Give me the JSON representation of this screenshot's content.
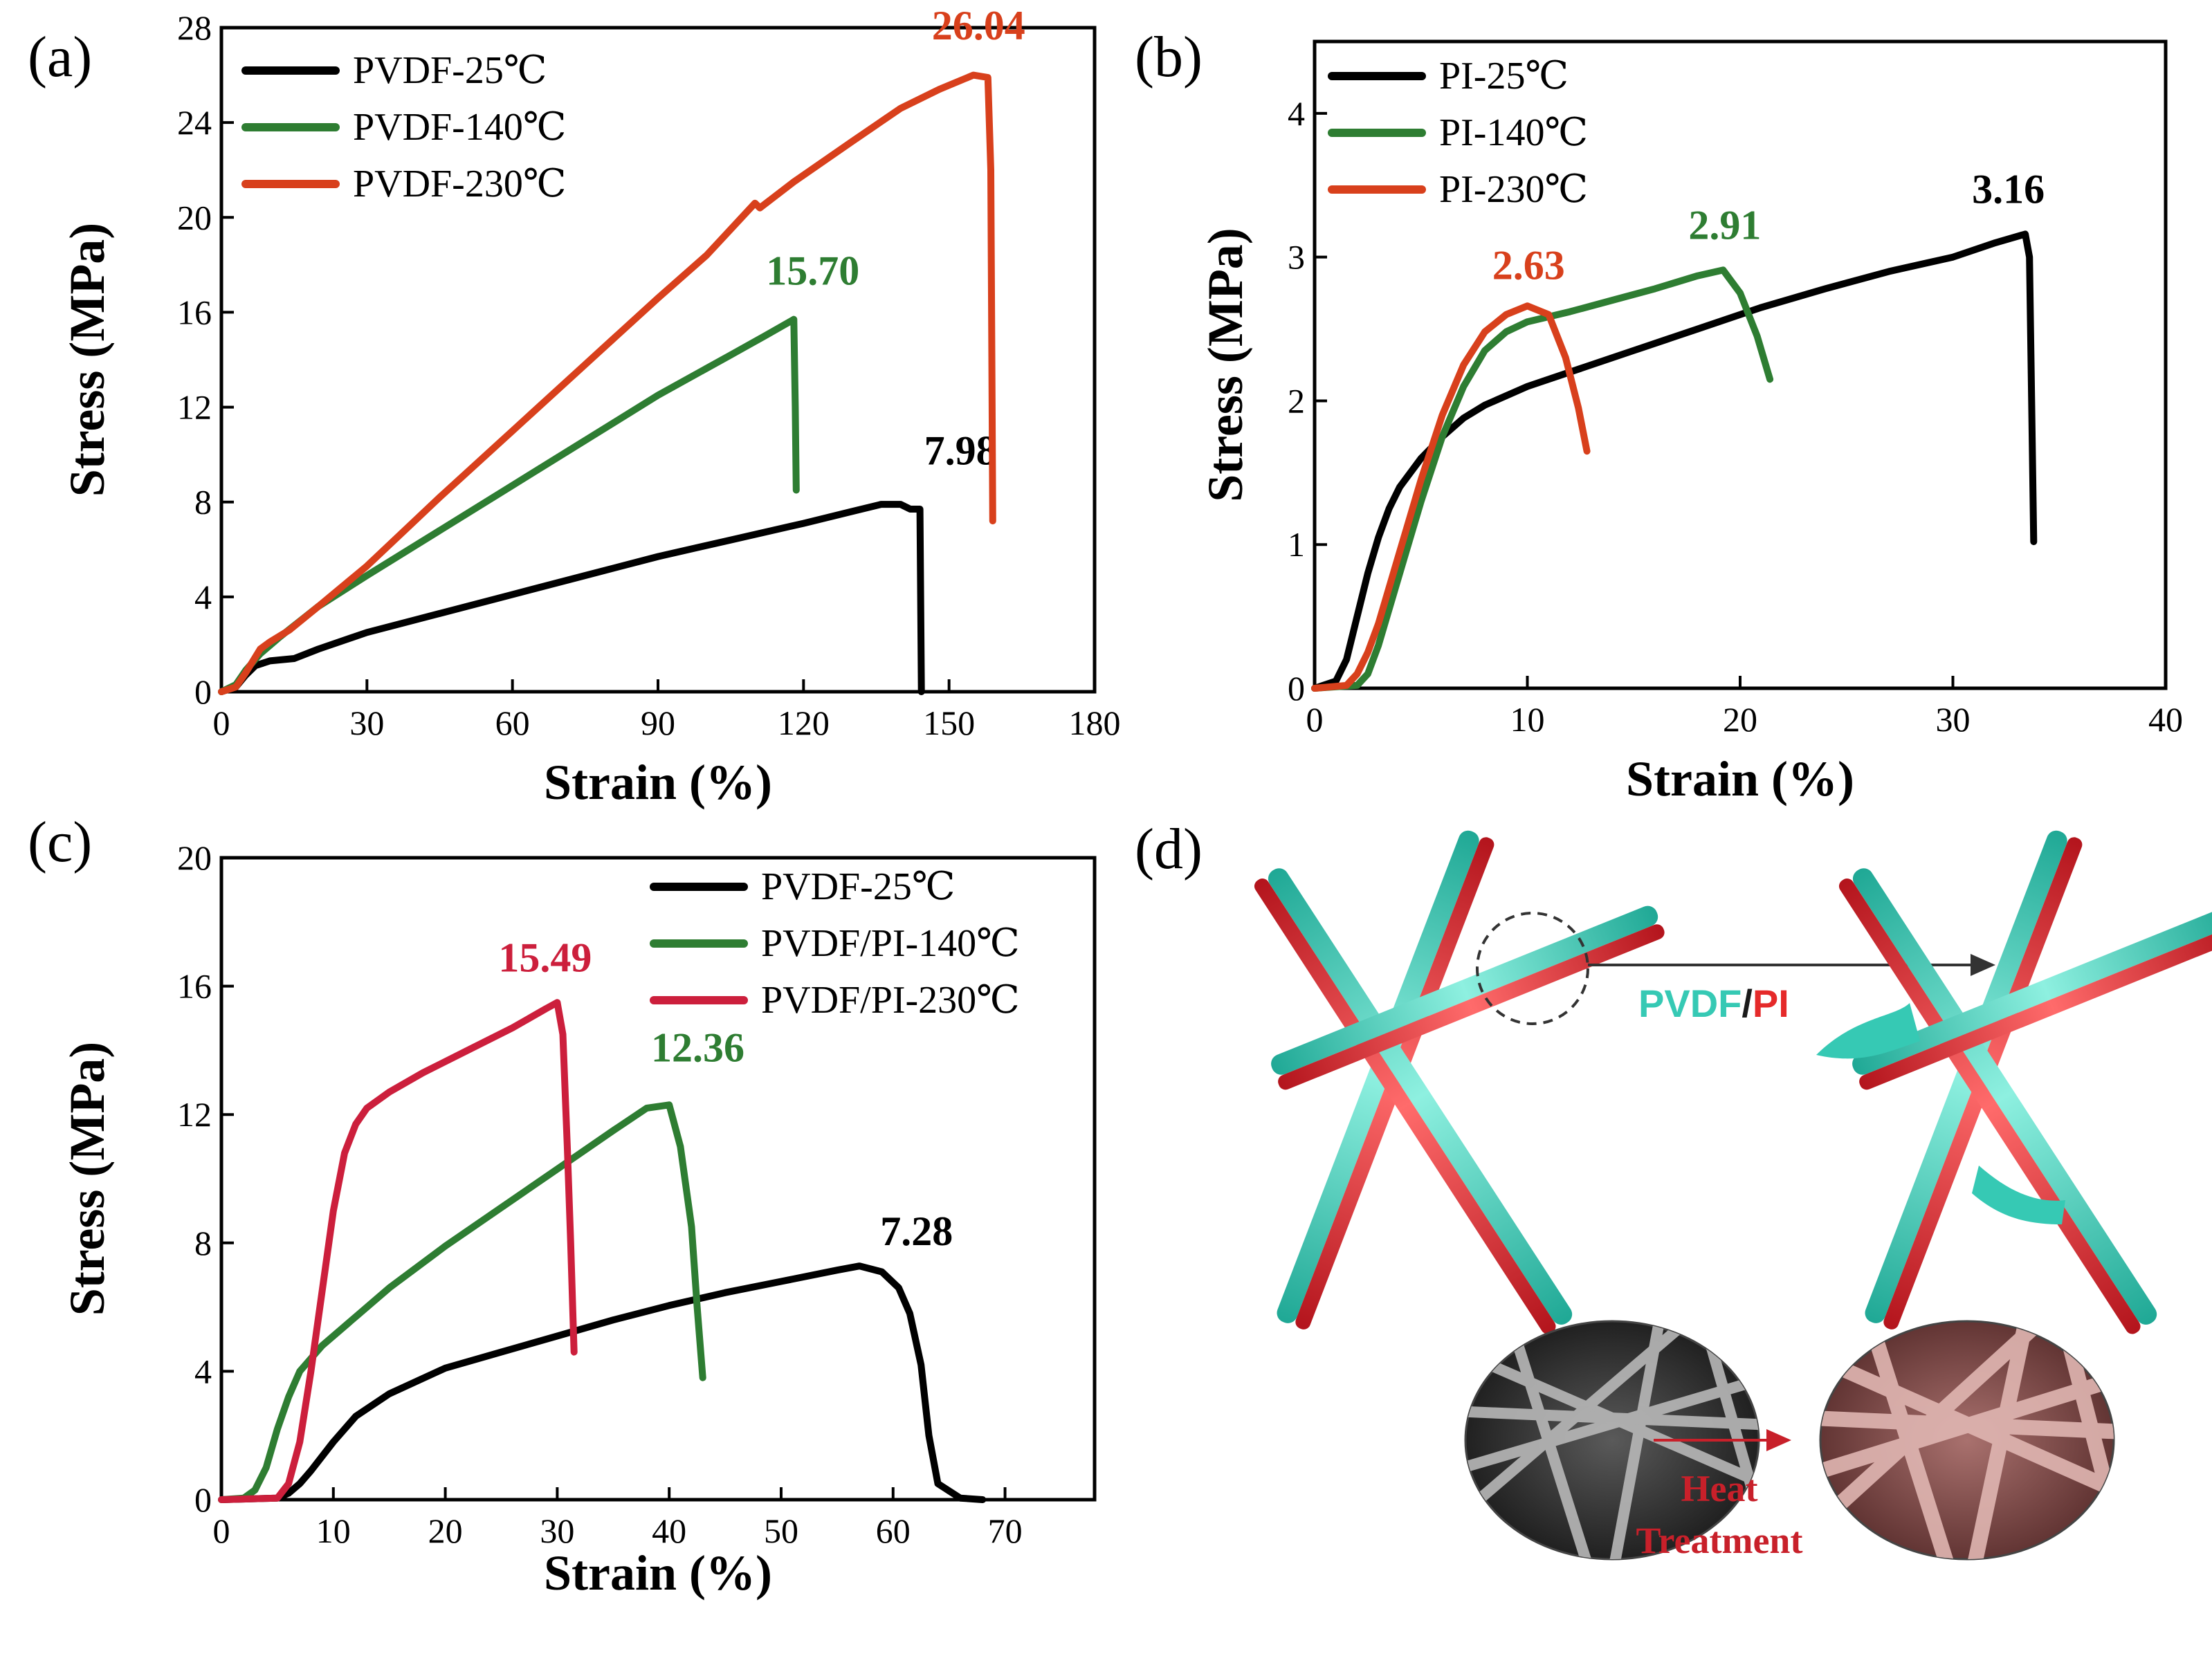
{
  "colors": {
    "black": "#000000",
    "green": "#2e7d32",
    "red": "#d8401c",
    "crimson": "#cc1f3c",
    "cyan": "#36c9b4",
    "pink_red": "#e52a2a"
  },
  "chart_data": [
    {
      "type": "line",
      "panel": "(a)",
      "xlabel": "Strain (%)",
      "ylabel": "Stress (MPa)",
      "xlim": [
        0,
        180
      ],
      "ylim": [
        0,
        28
      ],
      "xticks": [
        0,
        30,
        60,
        90,
        120,
        150,
        180
      ],
      "yticks": [
        0,
        4,
        8,
        12,
        16,
        20,
        24,
        28
      ],
      "legend_position": "top-left",
      "series": [
        {
          "name": "PVDF-25℃",
          "color": "#000000",
          "peak_label": "7.98",
          "peak": [
            142,
            7.98
          ],
          "points": [
            [
              0,
              0
            ],
            [
              3,
              0.2
            ],
            [
              5,
              0.7
            ],
            [
              7,
              1.1
            ],
            [
              10,
              1.3
            ],
            [
              15,
              1.4
            ],
            [
              20,
              1.8
            ],
            [
              30,
              2.5
            ],
            [
              45,
              3.3
            ],
            [
              60,
              4.1
            ],
            [
              75,
              4.9
            ],
            [
              90,
              5.7
            ],
            [
              105,
              6.4
            ],
            [
              120,
              7.1
            ],
            [
              130,
              7.6
            ],
            [
              136,
              7.9
            ],
            [
              140,
              7.9
            ],
            [
              142,
              7.7
            ],
            [
              144,
              7.7
            ],
            [
              144.3,
              0
            ]
          ]
        },
        {
          "name": "PVDF-140℃",
          "color": "#2e7d32",
          "peak_label": "15.70",
          "peak": [
            118,
            15.7
          ],
          "points": [
            [
              0,
              0
            ],
            [
              3,
              0.3
            ],
            [
              5,
              0.9
            ],
            [
              8,
              1.6
            ],
            [
              12,
              2.3
            ],
            [
              20,
              3.6
            ],
            [
              30,
              4.9
            ],
            [
              45,
              6.8
            ],
            [
              60,
              8.7
            ],
            [
              75,
              10.6
            ],
            [
              90,
              12.5
            ],
            [
              105,
              14.2
            ],
            [
              112,
              15.0
            ],
            [
              118,
              15.7
            ],
            [
              118.3,
              12
            ],
            [
              118.5,
              8.5
            ]
          ]
        },
        {
          "name": "PVDF-230℃",
          "color": "#d8401c",
          "peak_label": "26.04",
          "peak": [
            155,
            26.04
          ],
          "points": [
            [
              0,
              0
            ],
            [
              3,
              0.2
            ],
            [
              5,
              0.8
            ],
            [
              8,
              1.8
            ],
            [
              10,
              2.1
            ],
            [
              14,
              2.6
            ],
            [
              20,
              3.6
            ],
            [
              30,
              5.3
            ],
            [
              45,
              8.2
            ],
            [
              60,
              11.0
            ],
            [
              75,
              13.8
            ],
            [
              90,
              16.6
            ],
            [
              100,
              18.4
            ],
            [
              110,
              20.6
            ],
            [
              111,
              20.4
            ],
            [
              118,
              21.5
            ],
            [
              130,
              23.2
            ],
            [
              140,
              24.6
            ],
            [
              148,
              25.4
            ],
            [
              155,
              26.0
            ],
            [
              158,
              25.9
            ],
            [
              158.6,
              22
            ],
            [
              159,
              7.2
            ]
          ]
        }
      ]
    },
    {
      "type": "line",
      "panel": "(b)",
      "xlabel": "Strain (%)",
      "ylabel": "Stress (MPa)",
      "xlim": [
        0,
        40
      ],
      "ylim": [
        0,
        4.5
      ],
      "xticks": [
        0,
        10,
        20,
        30,
        40
      ],
      "yticks": [
        0,
        1,
        2,
        3,
        4
      ],
      "legend_position": "top-left",
      "series": [
        {
          "name": "PI-25℃",
          "color": "#000000",
          "peak_label": "3.16",
          "peak": [
            33.5,
            3.16
          ],
          "points": [
            [
              0,
              0
            ],
            [
              1,
              0.05
            ],
            [
              1.5,
              0.2
            ],
            [
              2,
              0.5
            ],
            [
              2.5,
              0.8
            ],
            [
              3,
              1.05
            ],
            [
              3.5,
              1.25
            ],
            [
              4,
              1.4
            ],
            [
              5,
              1.6
            ],
            [
              6,
              1.75
            ],
            [
              7,
              1.88
            ],
            [
              8,
              1.97
            ],
            [
              10,
              2.1
            ],
            [
              12,
              2.2
            ],
            [
              15,
              2.35
            ],
            [
              18,
              2.5
            ],
            [
              21,
              2.65
            ],
            [
              24,
              2.78
            ],
            [
              27,
              2.9
            ],
            [
              30,
              3.0
            ],
            [
              32,
              3.1
            ],
            [
              33.4,
              3.16
            ],
            [
              33.6,
              3.0
            ],
            [
              33.7,
              2.0
            ],
            [
              33.8,
              1.02
            ]
          ]
        },
        {
          "name": "PI-140℃",
          "color": "#2e7d32",
          "peak_label": "2.91",
          "peak": [
            19.2,
            2.91
          ],
          "points": [
            [
              0,
              0
            ],
            [
              2,
              0.02
            ],
            [
              2.5,
              0.1
            ],
            [
              3,
              0.3
            ],
            [
              4,
              0.8
            ],
            [
              5,
              1.3
            ],
            [
              6,
              1.75
            ],
            [
              7,
              2.1
            ],
            [
              8,
              2.35
            ],
            [
              9,
              2.48
            ],
            [
              10,
              2.55
            ],
            [
              12,
              2.62
            ],
            [
              14,
              2.7
            ],
            [
              16,
              2.78
            ],
            [
              18,
              2.87
            ],
            [
              19.2,
              2.91
            ],
            [
              20,
              2.75
            ],
            [
              20.8,
              2.45
            ],
            [
              21.4,
              2.15
            ]
          ]
        },
        {
          "name": "PI-230℃",
          "color": "#d8401c",
          "peak_label": "2.63",
          "peak": [
            10.3,
            2.63
          ],
          "points": [
            [
              0,
              0
            ],
            [
              1.5,
              0.02
            ],
            [
              2,
              0.1
            ],
            [
              2.5,
              0.25
            ],
            [
              3,
              0.45
            ],
            [
              4,
              0.95
            ],
            [
              5,
              1.45
            ],
            [
              6,
              1.9
            ],
            [
              7,
              2.25
            ],
            [
              8,
              2.48
            ],
            [
              9,
              2.6
            ],
            [
              10,
              2.66
            ],
            [
              11,
              2.6
            ],
            [
              11.8,
              2.3
            ],
            [
              12.4,
              1.95
            ],
            [
              12.8,
              1.65
            ]
          ]
        }
      ]
    },
    {
      "type": "line",
      "panel": "(c)",
      "xlabel": "Strain (%)",
      "ylabel": "Stress (MPa)",
      "xlim": [
        0,
        78
      ],
      "ylim": [
        0,
        20
      ],
      "xticks": [
        0,
        10,
        20,
        30,
        40,
        50,
        60,
        70
      ],
      "yticks": [
        0,
        4,
        8,
        12,
        16,
        20
      ],
      "legend_position": "top-right",
      "series": [
        {
          "name": "PVDF-25℃",
          "color": "#000000",
          "peak_label": "7.28",
          "peak": [
            57,
            7.28
          ],
          "points": [
            [
              0,
              0
            ],
            [
              5,
              0.05
            ],
            [
              6,
              0.2
            ],
            [
              7,
              0.5
            ],
            [
              8,
              0.9
            ],
            [
              10,
              1.8
            ],
            [
              12,
              2.6
            ],
            [
              15,
              3.3
            ],
            [
              20,
              4.1
            ],
            [
              25,
              4.6
            ],
            [
              30,
              5.1
            ],
            [
              35,
              5.6
            ],
            [
              40,
              6.05
            ],
            [
              45,
              6.45
            ],
            [
              50,
              6.8
            ],
            [
              55,
              7.15
            ],
            [
              57,
              7.28
            ],
            [
              59,
              7.1
            ],
            [
              60.5,
              6.6
            ],
            [
              61.5,
              5.8
            ],
            [
              62.5,
              4.2
            ],
            [
              63.2,
              2.0
            ],
            [
              64,
              0.5
            ],
            [
              66,
              0.05
            ],
            [
              68,
              0
            ]
          ]
        },
        {
          "name": "PVDF/PI-140℃",
          "color": "#2e7d32",
          "peak_label": "12.36",
          "peak": [
            39,
            12.36
          ],
          "points": [
            [
              0,
              0
            ],
            [
              2,
              0.05
            ],
            [
              3,
              0.3
            ],
            [
              4,
              1.0
            ],
            [
              5,
              2.2
            ],
            [
              6,
              3.2
            ],
            [
              7,
              4.0
            ],
            [
              9,
              4.8
            ],
            [
              12,
              5.7
            ],
            [
              15,
              6.6
            ],
            [
              20,
              7.9
            ],
            [
              25,
              9.1
            ],
            [
              30,
              10.3
            ],
            [
              35,
              11.5
            ],
            [
              38,
              12.2
            ],
            [
              40,
              12.3
            ],
            [
              41,
              11.0
            ],
            [
              42,
              8.5
            ],
            [
              42.5,
              6.0
            ],
            [
              43,
              3.8
            ]
          ]
        },
        {
          "name": "PVDF/PI-230℃",
          "color": "#cc1f3c",
          "peak_label": "15.49",
          "peak": [
            30,
            15.49
          ],
          "points": [
            [
              0,
              0
            ],
            [
              5,
              0.05
            ],
            [
              6,
              0.5
            ],
            [
              7,
              1.8
            ],
            [
              8,
              4.0
            ],
            [
              9,
              6.5
            ],
            [
              10,
              9.0
            ],
            [
              11,
              10.8
            ],
            [
              12,
              11.7
            ],
            [
              13,
              12.2
            ],
            [
              15,
              12.7
            ],
            [
              18,
              13.3
            ],
            [
              22,
              14.0
            ],
            [
              26,
              14.7
            ],
            [
              29,
              15.3
            ],
            [
              30,
              15.49
            ],
            [
              30.5,
              14.5
            ],
            [
              30.9,
              11.0
            ],
            [
              31.2,
              8.0
            ],
            [
              31.5,
              4.6
            ]
          ]
        }
      ]
    }
  ],
  "panel_d": {
    "label": "(d)",
    "fiber_label_a": "PVDF",
    "fiber_label_sep": "/",
    "fiber_label_b": "PI",
    "process_line1": "Heat",
    "process_line2": "Treatment"
  }
}
